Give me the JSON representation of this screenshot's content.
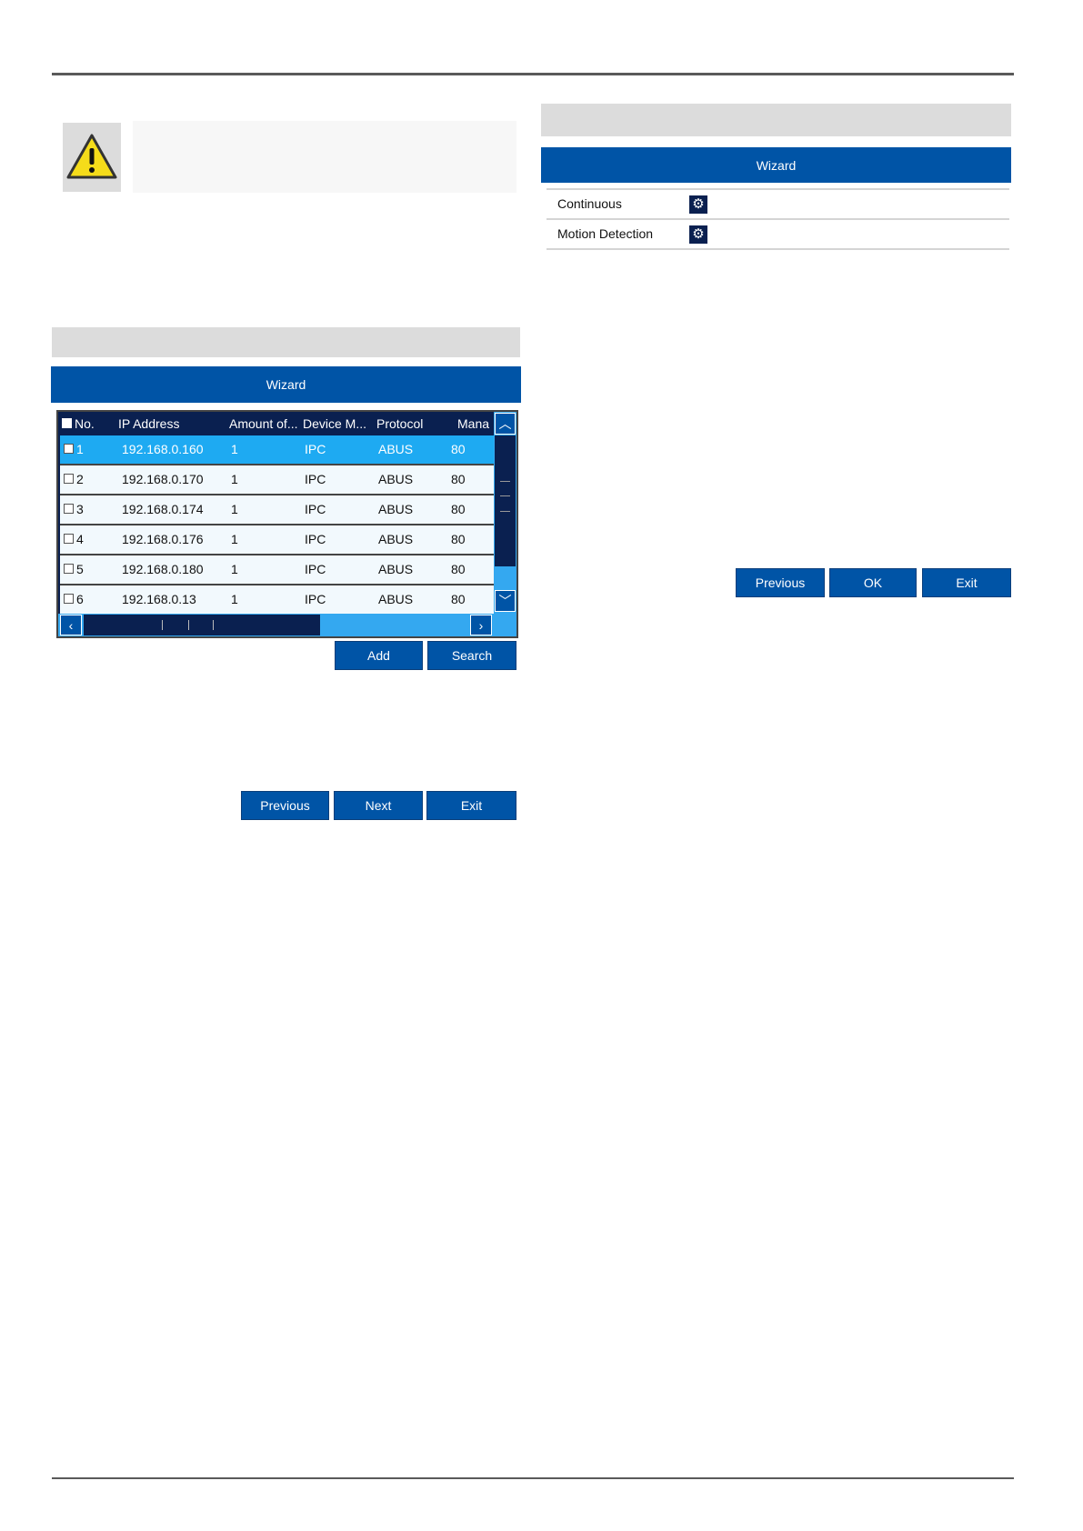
{
  "colors": {
    "primary": "#0054a6",
    "dark": "#0a2050",
    "selected": "#1eaaf2",
    "scroll": "#34a8f0"
  },
  "warning": {
    "icon": "warning-triangle-icon"
  },
  "left_panel": {
    "title": "Wizard",
    "table": {
      "headers": [
        "No.",
        "IP Address",
        "Amount of...",
        "Device M...",
        "Protocol",
        "Mana"
      ],
      "rows": [
        {
          "no": "1",
          "ip": "192.168.0.160",
          "amount": "1",
          "device": "IPC",
          "protocol": "ABUS",
          "port": "80",
          "selected": true
        },
        {
          "no": "2",
          "ip": "192.168.0.170",
          "amount": "1",
          "device": "IPC",
          "protocol": "ABUS",
          "port": "80"
        },
        {
          "no": "3",
          "ip": "192.168.0.174",
          "amount": "1",
          "device": "IPC",
          "protocol": "ABUS",
          "port": "80"
        },
        {
          "no": "4",
          "ip": "192.168.0.176",
          "amount": "1",
          "device": "IPC",
          "protocol": "ABUS",
          "port": "80"
        },
        {
          "no": "5",
          "ip": "192.168.0.180",
          "amount": "1",
          "device": "IPC",
          "protocol": "ABUS",
          "port": "80"
        },
        {
          "no": "6",
          "ip": "192.168.0.13",
          "amount": "1",
          "device": "IPC",
          "protocol": "ABUS",
          "port": "80"
        }
      ]
    },
    "add_label": "Add",
    "search_label": "Search",
    "previous_label": "Previous",
    "next_label": "Next",
    "exit_label": "Exit"
  },
  "right_panel": {
    "title": "Wizard",
    "rows": [
      {
        "label": "Continuous",
        "icon": "gear-icon"
      },
      {
        "label": "Motion Detection",
        "icon": "gear-icon"
      }
    ],
    "previous_label": "Previous",
    "ok_label": "OK",
    "exit_label": "Exit"
  }
}
